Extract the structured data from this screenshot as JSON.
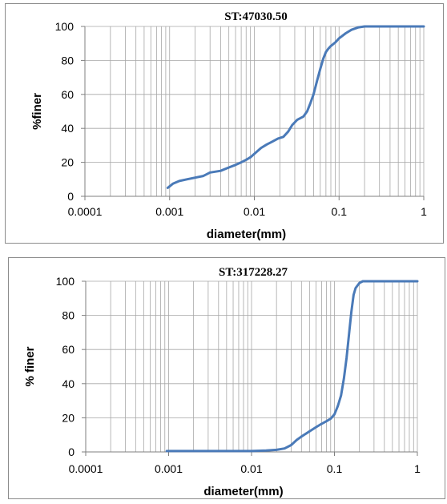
{
  "chart_data": [
    {
      "type": "line",
      "title": "ST:47030.50",
      "xlabel": "diameter(mm)",
      "ylabel": "%finer",
      "xscale": "log",
      "xlim": [
        0.0001,
        1
      ],
      "ylim": [
        0,
        100
      ],
      "xticks": [
        "0.0001",
        "0.001",
        "0.01",
        "0.1",
        "1"
      ],
      "yticks": [
        "0",
        "20",
        "40",
        "60",
        "80",
        "100"
      ],
      "grid": true,
      "color": "#4a7ab8",
      "series": [
        {
          "x": [
            0.00095,
            0.0011,
            0.0013,
            0.0016,
            0.002,
            0.0025,
            0.003,
            0.004,
            0.005,
            0.006,
            0.007,
            0.008,
            0.009,
            0.01,
            0.012,
            0.014,
            0.016,
            0.019,
            0.022,
            0.025,
            0.028,
            0.032,
            0.038,
            0.042,
            0.046,
            0.05,
            0.055,
            0.06,
            0.065,
            0.07,
            0.075,
            0.08,
            0.09,
            0.1,
            0.12,
            0.14,
            0.17,
            0.2,
            0.25,
            0.3,
            0.5,
            1.0
          ],
          "y": [
            5,
            7.5,
            9,
            10,
            11,
            12,
            14,
            15,
            17,
            18.5,
            20,
            21.5,
            23,
            25,
            28.5,
            30.5,
            32,
            34,
            35,
            38,
            42,
            45,
            47,
            50,
            55,
            60,
            68,
            75,
            81,
            85,
            87,
            88.5,
            90.5,
            93,
            96,
            98,
            99.5,
            100,
            100,
            100,
            100,
            100
          ]
        }
      ]
    },
    {
      "type": "line",
      "title": "ST:317228.27",
      "xlabel": "diameter(mm)",
      "ylabel": "% finer",
      "xscale": "log",
      "xlim": [
        0.0001,
        1
      ],
      "ylim": [
        0,
        100
      ],
      "xticks": [
        "0.0001",
        "0.001",
        "0.01",
        "0.1",
        "1"
      ],
      "yticks": [
        "0",
        "20",
        "40",
        "60",
        "80",
        "100"
      ],
      "grid": true,
      "color": "#4a7ab8",
      "series": [
        {
          "x": [
            0.00095,
            0.002,
            0.005,
            0.01,
            0.015,
            0.02,
            0.025,
            0.03,
            0.035,
            0.04,
            0.05,
            0.06,
            0.07,
            0.08,
            0.09,
            0.1,
            0.11,
            0.12,
            0.13,
            0.14,
            0.15,
            0.16,
            0.17,
            0.18,
            0.2,
            0.22,
            0.25,
            0.3,
            0.5,
            1.0
          ],
          "y": [
            0.5,
            0.5,
            0.5,
            0.5,
            0.8,
            1.2,
            2,
            4,
            7,
            9,
            12,
            14.5,
            16.5,
            18,
            19.5,
            22,
            27,
            33,
            43,
            55,
            69,
            82,
            92,
            96,
            99,
            100,
            100,
            100,
            100,
            100
          ]
        }
      ]
    }
  ]
}
